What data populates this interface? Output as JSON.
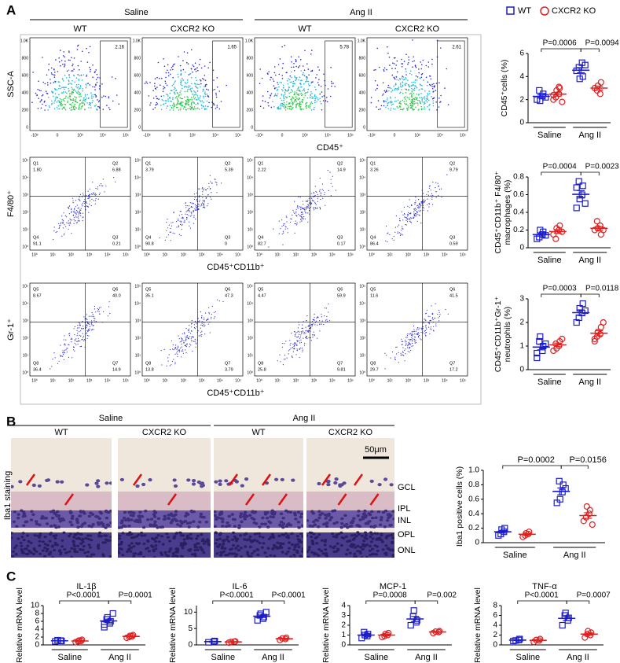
{
  "chart_data": [
    {
      "type": "dotplot",
      "y_label": [
        "CD45⁺cells (%)"
      ],
      "ylim": [
        0,
        6
      ],
      "yticks": [
        0,
        2,
        4,
        6
      ],
      "groups": [
        "Saline",
        "Ang II"
      ],
      "pvalues": [
        "P=0.0006",
        "P=0.0094"
      ],
      "series": [
        {
          "name": "WT",
          "color": "#1c1cc8",
          "marker": "square",
          "values": [
            [
              2.0,
              2.3,
              2.5,
              2.8,
              1.9,
              2.2
            ],
            [
              4.5,
              5.2,
              4.0,
              4.8,
              3.8,
              5.0
            ]
          ]
        },
        {
          "name": "CXCR2 KO",
          "color": "#e02020",
          "marker": "circle",
          "values": [
            [
              2.0,
              2.5,
              3.0,
              2.2,
              2.8,
              1.8,
              2.4,
              3.1
            ],
            [
              3.0,
              2.5,
              3.5,
              2.8,
              3.2
            ]
          ]
        }
      ]
    },
    {
      "type": "dotplot",
      "y_label": [
        "CD45⁺CD11b⁺ F4/80⁺",
        "macrophages (%)"
      ],
      "ylim": [
        0,
        0.8
      ],
      "yticks": [
        0,
        0.2,
        0.4,
        0.6,
        0.8
      ],
      "groups": [
        "Saline",
        "Ang II"
      ],
      "pvalues": [
        "P=0.0004",
        "P=0.0023"
      ],
      "series": [
        {
          "name": "WT",
          "color": "#1c1cc8",
          "marker": "square",
          "values": [
            [
              0.1,
              0.15,
              0.18,
              0.12,
              0.2,
              0.14
            ],
            [
              0.45,
              0.6,
              0.7,
              0.75,
              0.55,
              0.5,
              0.68
            ]
          ]
        },
        {
          "name": "CXCR2 KO",
          "color": "#e02020",
          "marker": "circle",
          "values": [
            [
              0.15,
              0.2,
              0.25,
              0.1,
              0.22,
              0.18
            ],
            [
              0.2,
              0.25,
              0.15,
              0.3,
              0.22,
              0.2
            ]
          ]
        }
      ]
    },
    {
      "type": "dotplot",
      "y_label": [
        "CD45⁺CD11b⁺Gr-1⁺",
        "neutrophils (%)"
      ],
      "ylim": [
        0,
        3
      ],
      "yticks": [
        0,
        1,
        2,
        3
      ],
      "groups": [
        "Saline",
        "Ang II"
      ],
      "pvalues": [
        "P=0.0003",
        "P=0.0118"
      ],
      "series": [
        {
          "name": "WT",
          "color": "#1c1cc8",
          "marker": "square",
          "values": [
            [
              0.5,
              0.8,
              1.0,
              1.2,
              1.4,
              1.1,
              0.7
            ],
            [
              2.0,
              2.4,
              2.8,
              2.2,
              2.6,
              2.5
            ]
          ]
        },
        {
          "name": "CXCR2 KO",
          "color": "#e02020",
          "marker": "circle",
          "values": [
            [
              0.8,
              1.0,
              1.2,
              1.1,
              0.9,
              1.3
            ],
            [
              1.2,
              1.5,
              1.8,
              1.4,
              1.6,
              2.0,
              1.3
            ]
          ]
        }
      ]
    },
    {
      "type": "dotplot",
      "y_label": [
        "Iba1 positive cells (%)"
      ],
      "ylim": [
        0,
        1
      ],
      "yticks": [
        0,
        0.2,
        0.4,
        0.6,
        0.8,
        {
          "value": 1,
          "label": "1.0"
        }
      ],
      "groups": [
        "Saline",
        "Ang II"
      ],
      "pvalues": [
        "P=0.0002",
        "P=0.0156"
      ],
      "series": [
        {
          "name": "WT",
          "color": "#1c1cc8",
          "marker": "square",
          "values": [
            [
              0.1,
              0.15,
              0.2,
              0.12,
              0.18
            ],
            [
              0.55,
              0.7,
              0.8,
              0.85,
              0.6,
              0.75
            ]
          ]
        },
        {
          "name": "CXCR2 KO",
          "color": "#e02020",
          "marker": "circle",
          "values": [
            [
              0.08,
              0.12,
              0.15,
              0.1,
              0.13
            ],
            [
              0.3,
              0.4,
              0.45,
              0.35,
              0.5,
              0.25
            ]
          ]
        }
      ]
    },
    {
      "type": "dotplot",
      "title": "IL-1β",
      "y_label": [
        "Relative mRNA level"
      ],
      "ylim": [
        0,
        10
      ],
      "yticks": [
        0,
        2,
        4,
        6,
        8,
        10
      ],
      "groups": [
        "Saline",
        "Ang II"
      ],
      "pvalues": [
        "P<0.0001",
        "P=0.0001"
      ],
      "series": [
        {
          "name": "WT",
          "color": "#1c1cc8",
          "marker": "square",
          "values": [
            [
              0.9,
              1.1,
              1.0,
              1.2
            ],
            [
              4.5,
              5.5,
              6,
              6.5,
              7,
              8,
              5.2
            ]
          ]
        },
        {
          "name": "CXCR2 KO",
          "color": "#e02020",
          "marker": "circle",
          "values": [
            [
              0.7,
              1.0,
              1.3,
              0.9,
              1.1
            ],
            [
              1.8,
              2.2,
              2.5,
              2.0,
              2.3
            ]
          ]
        }
      ]
    },
    {
      "type": "dotplot",
      "title": "IL-6",
      "y_label": [
        "Relative mRNA level"
      ],
      "ylim": [
        0,
        12
      ],
      "yticks": [
        0,
        5,
        10
      ],
      "groups": [
        "Saline",
        "Ang II"
      ],
      "pvalues": [
        "P<0.0001",
        "P<0.0001"
      ],
      "series": [
        {
          "name": "WT",
          "color": "#1c1cc8",
          "marker": "square",
          "values": [
            [
              0.8,
              1.0,
              1.2
            ],
            [
              7.5,
              8,
              8.5,
              9,
              9.5,
              10
            ]
          ]
        },
        {
          "name": "CXCR2 KO",
          "color": "#e02020",
          "marker": "circle",
          "values": [
            [
              0.7,
              1.0,
              1.1,
              0.9
            ],
            [
              1.5,
              1.8,
              2.2,
              2.0
            ]
          ]
        }
      ]
    },
    {
      "type": "dotplot",
      "title": "MCP-1",
      "y_label": [
        "Relative mRNA level"
      ],
      "ylim": [
        0,
        4
      ],
      "yticks": [
        0,
        1,
        2,
        3,
        4
      ],
      "groups": [
        "Saline",
        "Ang II"
      ],
      "pvalues": [
        "P=0.0008",
        "P=0.002"
      ],
      "series": [
        {
          "name": "WT",
          "color": "#1c1cc8",
          "marker": "square",
          "values": [
            [
              0.7,
              0.9,
              1.1,
              1.3,
              1.0
            ],
            [
              2.0,
              2.3,
              2.5,
              2.9,
              3.5
            ]
          ]
        },
        {
          "name": "CXCR2 KO",
          "color": "#e02020",
          "marker": "circle",
          "values": [
            [
              0.8,
              1.0,
              1.2,
              0.9,
              1.1
            ],
            [
              1.2,
              1.3,
              1.4,
              1.35
            ]
          ]
        }
      ]
    },
    {
      "type": "dotplot",
      "title": "TNF-α",
      "y_label": [
        "Relative mRNA level"
      ],
      "ylim": [
        0,
        8
      ],
      "yticks": [
        0,
        2,
        4,
        6,
        8
      ],
      "groups": [
        "Saline",
        "Ang II"
      ],
      "pvalues": [
        "P<0.0001",
        "P=0.0007"
      ],
      "series": [
        {
          "name": "WT",
          "color": "#1c1cc8",
          "marker": "square",
          "values": [
            [
              0.8,
              1.0,
              1.2,
              0.9
            ],
            [
              4.0,
              5.0,
              5.5,
              6.0,
              6.5
            ]
          ]
        },
        {
          "name": "CXCR2 KO",
          "color": "#e02020",
          "marker": "circle",
          "values": [
            [
              0.6,
              0.9,
              1.2,
              1.0
            ],
            [
              1.5,
              2.0,
              2.5,
              2.2,
              2.8
            ]
          ]
        }
      ]
    }
  ],
  "panel_a": {
    "label": "A",
    "headers": [
      "Saline",
      "Ang II"
    ],
    "subheaders": [
      "WT",
      "CXCR2 KO",
      "WT",
      "CXCR2 KO"
    ],
    "rows": [
      {
        "y_label": "SSC-A",
        "x_label": "CD45⁺",
        "xticks": [
          "-10³",
          "0",
          "10³",
          "10⁴",
          "10⁵"
        ],
        "yticks": [
          "1.0K",
          "800",
          "600",
          "400",
          "200",
          "0"
        ],
        "gates": [
          "2.16",
          "1.65",
          "5.78",
          "2.61"
        ]
      },
      {
        "y_label": "F4/80⁺",
        "x_label": "CD45⁺CD11b⁺",
        "xticks": [
          "10⁰",
          "10¹",
          "10²",
          "10³",
          "10⁴",
          "10⁵"
        ],
        "yticks": [
          "10⁵",
          "10⁴",
          "10³",
          "10²",
          "10¹",
          "10⁰"
        ],
        "quadrant_names": [
          "Q1",
          "Q2",
          "Q3",
          "Q4"
        ],
        "quadrants": [
          [
            "1.80",
            "6.88",
            "0.21",
            "91.1"
          ],
          [
            "3.79",
            "5.39",
            "0",
            "90.8"
          ],
          [
            "2.22",
            "14.9",
            "0.17",
            "82.7"
          ],
          [
            "3.26",
            "9.79",
            "0.59",
            "86.4"
          ]
        ]
      },
      {
        "y_label": "Gr-1⁺",
        "x_label": "CD45⁺CD11b⁺",
        "xticks": [
          "10⁰",
          "10¹",
          "10²",
          "10³",
          "10⁴",
          "10⁵"
        ],
        "yticks": [
          "10⁵",
          "10⁴",
          "10³",
          "10²",
          "10¹",
          "10⁰"
        ],
        "quadrant_names": [
          "Q5",
          "Q6",
          "Q7",
          "Q8"
        ],
        "quadrants": [
          [
            "8.67",
            "40.0",
            "14.9",
            "36.4"
          ],
          [
            "35.1",
            "47.3",
            "3.79",
            "13.8"
          ],
          [
            "4.47",
            "59.9",
            "9.81",
            "25.8"
          ],
          [
            "11.6",
            "41.5",
            "17.2",
            "29.7"
          ]
        ]
      }
    ]
  },
  "panel_b": {
    "label": "B",
    "headers": [
      "Saline",
      "Ang II"
    ],
    "subheaders": [
      "WT",
      "CXCR2 KO",
      "WT",
      "CXCR2 KO"
    ],
    "y_label": "Iba1 staining",
    "scale_bar": "50μm",
    "layers": [
      "GCL",
      "IPL",
      "INL",
      "OPL",
      "ONL"
    ]
  },
  "panel_c": {
    "label": "C"
  }
}
